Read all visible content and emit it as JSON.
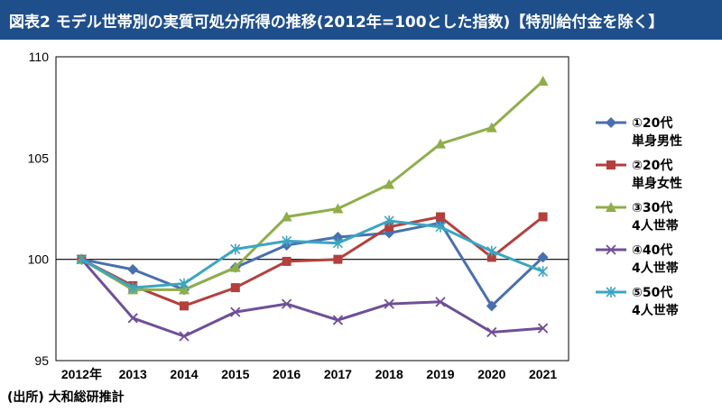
{
  "header": {
    "title": "図表2 モデル世帯別の実質可処分所得の推移(2012年=100とした指数)【特別給付金を除く】",
    "background": "#1f4f8b"
  },
  "source_note": "(出所) 大和総研推計",
  "chart_data": {
    "type": "line",
    "title": "図表2 モデル世帯別の実質可処分所得の推移(2012年=100とした指数)【特別給付金を除く】",
    "xlabel": "",
    "ylabel": "",
    "categories": [
      "2012年",
      "2013",
      "2014",
      "2015",
      "2016",
      "2017",
      "2018",
      "2019",
      "2020",
      "2021"
    ],
    "ylim": [
      95,
      110
    ],
    "yticks": [
      95,
      100,
      105,
      110
    ],
    "reference_line": 100,
    "legend_position": "right",
    "series": [
      {
        "name": "①20代 単身男性",
        "label_lines": [
          "①20代",
          "単身男性"
        ],
        "color": "#4a6fae",
        "marker": "diamond",
        "values": [
          100,
          99.5,
          98.5,
          99.6,
          100.7,
          101.1,
          101.3,
          101.8,
          97.7,
          100.1
        ]
      },
      {
        "name": "②20代 単身女性",
        "label_lines": [
          "②20代",
          "単身女性"
        ],
        "color": "#b3403c",
        "marker": "square",
        "values": [
          100,
          98.7,
          97.7,
          98.6,
          99.9,
          100.0,
          101.6,
          102.1,
          100.1,
          102.1
        ]
      },
      {
        "name": "③30代 4人世帯",
        "label_lines": [
          "③30代",
          "4人世帯"
        ],
        "color": "#8fae4a",
        "marker": "triangle",
        "values": [
          100,
          98.5,
          98.5,
          99.6,
          102.1,
          102.5,
          103.7,
          105.7,
          106.5,
          108.8
        ]
      },
      {
        "name": "④40代 4人世帯",
        "label_lines": [
          "④40代",
          "4人世帯"
        ],
        "color": "#6f4f98",
        "marker": "x",
        "values": [
          100,
          97.1,
          96.2,
          97.4,
          97.8,
          97.0,
          97.8,
          97.9,
          96.4,
          96.6
        ]
      },
      {
        "name": "⑤50代 4人世帯",
        "label_lines": [
          "⑤50代",
          "4人世帯"
        ],
        "color": "#3ba6c1",
        "marker": "star",
        "values": [
          100,
          98.6,
          98.8,
          100.5,
          100.9,
          100.8,
          101.9,
          101.6,
          100.4,
          99.4
        ]
      }
    ]
  }
}
